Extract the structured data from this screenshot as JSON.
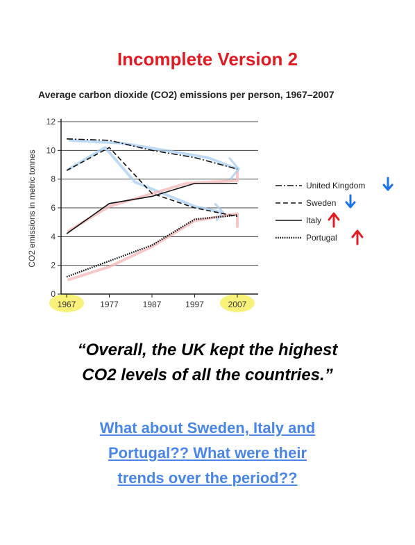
{
  "slide_title": "Incomplete Version 2",
  "quote": {
    "line1": "“Overall, the UK kept the highest",
    "line2": "CO2 levels of all the countries.”"
  },
  "question": {
    "line1": "What about Sweden, Italy and",
    "line2": "Portugal?? What were their",
    "line3": "trends over the period??"
  },
  "colors": {
    "title_red": "#e11b22",
    "question_blue": "#4a86e8",
    "arrow_blue": "#1a73e8",
    "arrow_red": "#e11b22",
    "highlight_yellow": "#f7f06b",
    "annot_blue": "#a9cdf0",
    "annot_pink": "#f4b6b6"
  },
  "chart_data": {
    "type": "line",
    "title": "Average carbon dioxide (CO2) emissions per person, 1967–2007",
    "ylabel": "CO2 emissions in metric tonnes",
    "xlabel": "",
    "x": [
      1967,
      1977,
      1987,
      1997,
      2007
    ],
    "x_tick_labels": [
      "1967",
      "1977",
      "1987",
      "1997",
      "2007"
    ],
    "y_ticks": [
      0,
      2,
      4,
      6,
      8,
      10,
      12
    ],
    "ylim": [
      0,
      12
    ],
    "grid": "horizontal",
    "legend_position": "right",
    "highlighted_ticks": [
      "1967",
      "2007"
    ],
    "series": [
      {
        "name": "United Kingdom",
        "style": "dash-dot",
        "trend": "down",
        "values": [
          10.8,
          10.7,
          10.0,
          9.5,
          8.7
        ]
      },
      {
        "name": "Sweden",
        "style": "dashed",
        "trend": "down",
        "values": [
          8.6,
          10.2,
          7.0,
          6.0,
          5.4
        ]
      },
      {
        "name": "Italy",
        "style": "solid",
        "trend": "up",
        "values": [
          4.2,
          6.3,
          6.8,
          7.7,
          7.7
        ]
      },
      {
        "name": "Portugal",
        "style": "dotted",
        "trend": "up",
        "values": [
          1.2,
          2.3,
          3.4,
          5.2,
          5.5
        ]
      }
    ]
  }
}
